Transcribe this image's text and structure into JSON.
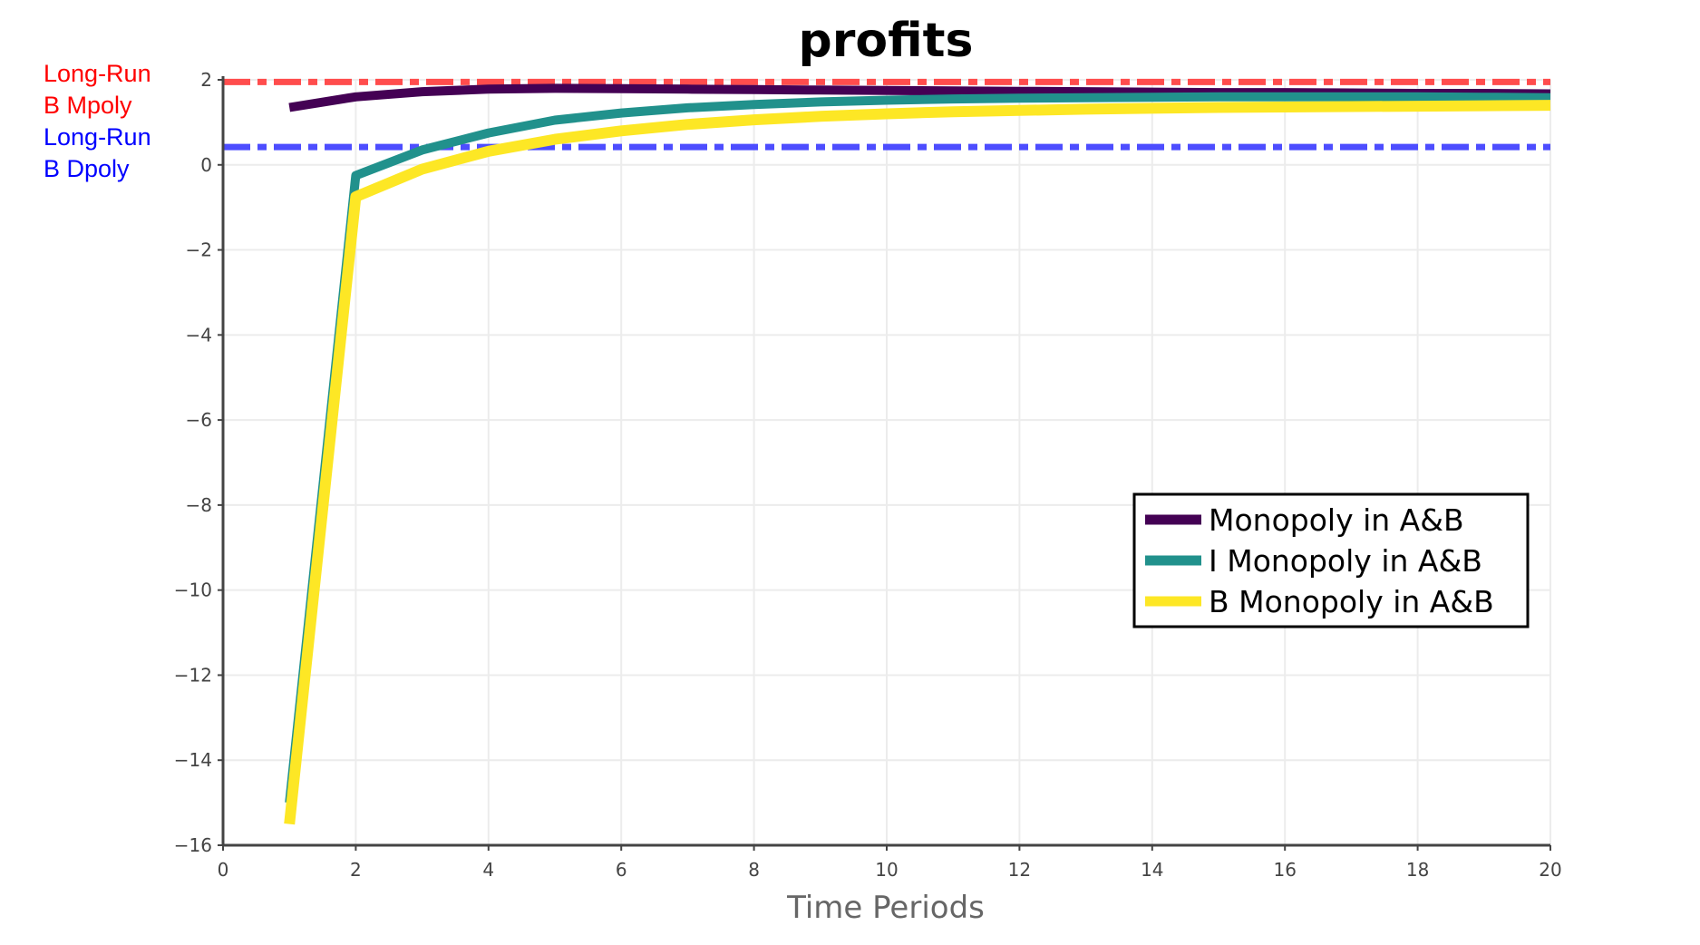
{
  "chart_data": {
    "type": "line",
    "title": "profits",
    "xlabel": "Time Periods",
    "ylabel": "",
    "xlim": [
      0,
      20
    ],
    "ylim": [
      -16,
      2
    ],
    "xticks": [
      0,
      2,
      4,
      6,
      8,
      10,
      12,
      14,
      16,
      18,
      20
    ],
    "yticks": [
      -16,
      -14,
      -12,
      -10,
      -8,
      -6,
      -4,
      -2,
      0,
      2
    ],
    "ytick_labels": [
      "−16",
      "−14",
      "−12",
      "−10",
      "−8",
      "−6",
      "−4",
      "−2",
      "0",
      "2"
    ],
    "grid": true,
    "legend_position": "lower-right",
    "series": [
      {
        "name": "Monopoly in A&B",
        "color": "#440154",
        "x": [
          1,
          2,
          3,
          4,
          5,
          6,
          7,
          8,
          9,
          10,
          11,
          12,
          13,
          14,
          15,
          16,
          17,
          18,
          19,
          20
        ],
        "values": [
          1.35,
          1.6,
          1.72,
          1.78,
          1.8,
          1.79,
          1.78,
          1.77,
          1.76,
          1.75,
          1.74,
          1.73,
          1.72,
          1.71,
          1.7,
          1.7,
          1.69,
          1.68,
          1.68,
          1.67
        ]
      },
      {
        "name": "I Monopoly in A&B",
        "color": "#21918c",
        "x": [
          1,
          2,
          3,
          4,
          5,
          6,
          7,
          8,
          9,
          10,
          11,
          12,
          13,
          14,
          15,
          16,
          17,
          18,
          19,
          20
        ],
        "values": [
          -15.0,
          -0.25,
          0.35,
          0.75,
          1.05,
          1.22,
          1.34,
          1.42,
          1.48,
          1.52,
          1.55,
          1.57,
          1.58,
          1.59,
          1.6,
          1.6,
          1.6,
          1.6,
          1.59,
          1.58
        ]
      },
      {
        "name": "B Monopoly in A&B",
        "color": "#fde725",
        "x": [
          1,
          2,
          3,
          4,
          5,
          6,
          7,
          8,
          9,
          10,
          11,
          12,
          13,
          14,
          15,
          16,
          17,
          18,
          19,
          20
        ],
        "values": [
          -15.5,
          -0.75,
          -0.1,
          0.32,
          0.6,
          0.8,
          0.95,
          1.06,
          1.14,
          1.2,
          1.25,
          1.28,
          1.31,
          1.33,
          1.35,
          1.36,
          1.37,
          1.38,
          1.39,
          1.4
        ]
      }
    ],
    "reference_lines": [
      {
        "label_lines": [
          "Long-Run",
          "B Mpoly"
        ],
        "y": 1.95,
        "color": "#ff4d4d",
        "style": "dash-dot"
      },
      {
        "label_lines": [
          "Long-Run",
          "B Dpoly"
        ],
        "y": 0.42,
        "color": "#4d4dff",
        "style": "dash-dot"
      }
    ],
    "annotation_text_colors": [
      "#ff0000",
      "#0000ff"
    ]
  }
}
